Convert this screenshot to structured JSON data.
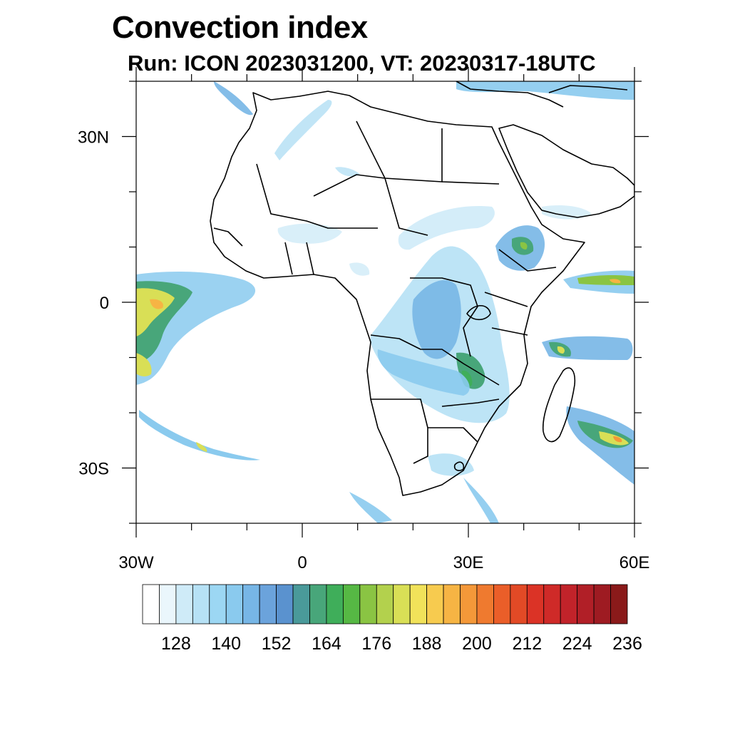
{
  "title": "Convection index",
  "subtitle": "Run: ICON 2023031200,  VT: 20230317-18UTC",
  "map": {
    "lon_range": [
      -30,
      60
    ],
    "lat_range": [
      -40,
      40
    ],
    "x_ticks": [
      {
        "value": -30,
        "label": "30W"
      },
      {
        "value": 0,
        "label": "0"
      },
      {
        "value": 30,
        "label": "30E"
      },
      {
        "value": 60,
        "label": "60E"
      }
    ],
    "y_ticks": [
      {
        "value": 30,
        "label": "30N"
      },
      {
        "value": 0,
        "label": "0"
      },
      {
        "value": -30,
        "label": "30S"
      }
    ],
    "minor_lon_step": 10,
    "minor_lat_step": 10
  },
  "colorbar": {
    "colors": [
      "#ffffff",
      "#eaf6fc",
      "#cfebf8",
      "#b6e1f5",
      "#9cd7f3",
      "#8acaee",
      "#77b6e6",
      "#6ba3dc",
      "#5a92cf",
      "#4a9a9a",
      "#48a67a",
      "#3fae5a",
      "#56b844",
      "#8ac443",
      "#b3d14d",
      "#d9df56",
      "#f1e25a",
      "#f7cb4f",
      "#f6b444",
      "#f49839",
      "#ef7a2f",
      "#ea5e29",
      "#e24a26",
      "#db3326",
      "#cf2a28",
      "#c1232a",
      "#b11f27",
      "#9e1b22",
      "#8a1a1a"
    ],
    "labels": [
      "128",
      "140",
      "152",
      "164",
      "176",
      "188",
      "200",
      "212",
      "224",
      "236"
    ]
  }
}
